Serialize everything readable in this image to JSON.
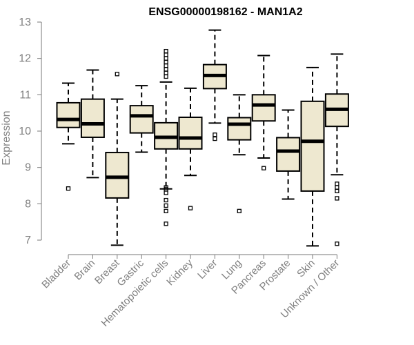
{
  "chart_data": {
    "type": "boxplot",
    "title": "ENSG00000198162 - MAN1A2",
    "xlabel": "",
    "ylabel": "Expression",
    "ylim": [
      6.7,
      13.0
    ],
    "yticks": [
      7,
      8,
      9,
      10,
      11,
      12,
      13
    ],
    "grid": false,
    "legend": "none",
    "box_fill": "#EEE8D0",
    "box_stroke": "#000000",
    "median_color": "#000000",
    "categories": [
      "Bladder",
      "Brain",
      "Breast",
      "Gastric",
      "Hematopoietic cells",
      "Kidney",
      "Liver",
      "Lung",
      "Pancreas",
      "Prostate",
      "Skin",
      "Unknown / Other"
    ],
    "boxes": [
      {
        "name": "Bladder",
        "whisker_low": 9.65,
        "q1": 10.1,
        "median": 10.32,
        "q3": 10.78,
        "whisker_high": 11.32,
        "outliers": [
          8.42
        ]
      },
      {
        "name": "Brain",
        "whisker_low": 8.72,
        "q1": 9.83,
        "median": 10.2,
        "q3": 10.88,
        "whisker_high": 11.68,
        "outliers": []
      },
      {
        "name": "Breast",
        "whisker_low": 6.86,
        "q1": 8.16,
        "median": 8.73,
        "q3": 9.41,
        "whisker_high": 10.88,
        "outliers": [
          11.57
        ]
      },
      {
        "name": "Gastric",
        "whisker_low": 9.42,
        "q1": 9.95,
        "median": 10.42,
        "q3": 10.7,
        "whisker_high": 11.25,
        "outliers": []
      },
      {
        "name": "Hematopoietic cells",
        "whisker_low": 8.41,
        "q1": 9.51,
        "median": 9.83,
        "q3": 10.23,
        "whisker_high": 11.35,
        "outliers": [
          7.45,
          7.8,
          7.95,
          8.1,
          8.3,
          8.4,
          8.45,
          11.5,
          11.6,
          11.7,
          11.8,
          11.9,
          12.0,
          12.1,
          12.2
        ]
      },
      {
        "name": "Kidney",
        "whisker_low": 8.78,
        "q1": 9.51,
        "median": 9.81,
        "q3": 10.38,
        "whisker_high": 11.18,
        "outliers": [
          7.88
        ]
      },
      {
        "name": "Liver",
        "whisker_low": 10.22,
        "q1": 11.17,
        "median": 11.53,
        "q3": 11.83,
        "whisker_high": 12.78,
        "outliers": [
          9.79,
          9.9
        ]
      },
      {
        "name": "Lung",
        "whisker_low": 9.35,
        "q1": 9.76,
        "median": 10.19,
        "q3": 10.37,
        "whisker_high": 11.0,
        "outliers": [
          7.8
        ]
      },
      {
        "name": "Pancreas",
        "whisker_low": 9.26,
        "q1": 10.28,
        "median": 10.72,
        "q3": 11.0,
        "whisker_high": 12.08,
        "outliers": [
          8.98
        ]
      },
      {
        "name": "Prostate",
        "whisker_low": 8.13,
        "q1": 8.9,
        "median": 9.45,
        "q3": 9.82,
        "whisker_high": 10.58,
        "outliers": []
      },
      {
        "name": "Skin",
        "whisker_low": 6.84,
        "q1": 8.35,
        "median": 9.72,
        "q3": 10.82,
        "whisker_high": 11.75,
        "outliers": []
      },
      {
        "name": "Unknown / Other",
        "whisker_low": 8.8,
        "q1": 10.13,
        "median": 10.6,
        "q3": 11.02,
        "whisker_high": 12.12,
        "outliers": [
          6.9,
          8.15,
          8.35,
          8.45,
          8.55
        ]
      }
    ]
  }
}
